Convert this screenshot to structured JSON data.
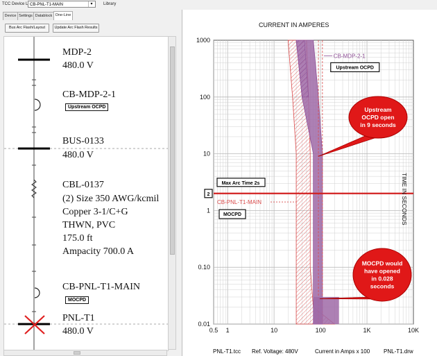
{
  "toolbar": {
    "device_list_label": "TCC Device List",
    "device_selected": "CB-PNL-T1-MAIN",
    "library_label": "Library"
  },
  "tabs": [
    "Device",
    "Settings",
    "Datablock",
    "One-Line"
  ],
  "buttons": {
    "bus_arc_flash": "Bus Arc Flash/Layout",
    "update_arc_flash": "Update Arc Flash Results"
  },
  "oneline": {
    "mdp_name": "MDP-2",
    "mdp_voltage": "480.0 V",
    "cb_mdp_name": "CB-MDP-2-1",
    "cb_mdp_tag": "Upstream OCPD",
    "bus_name": "BUS-0133",
    "bus_voltage": "480.0 V",
    "cable_name": "CBL-0137",
    "cable_lines": [
      "(2) Size 350 AWG/kcmil",
      "Copper 3-1/C+G",
      "THWN, PVC",
      "175.0 ft",
      "Ampacity 700.0 A"
    ],
    "cb_pnl_name": "CB-PNL-T1-MAIN",
    "cb_pnl_tag": "MOCPD",
    "pnl_name": "PNL-T1",
    "pnl_voltage": "480.0 V"
  },
  "tcc": {
    "title": "CURRENT IN AMPERES",
    "ylabel": "TIME IN SECONDS",
    "footer_file": "PNL-T1.tcc",
    "footer_ref": "Ref. Voltage: 480V",
    "footer_current": "Current in Amps x 100",
    "footer_drw": "PNL-T1.drw",
    "upstream_label": "CB-MDP-2-1",
    "upstream_tag": "Upstream OCPD",
    "mocpd_label": "CB-PNL-T1-MAIN",
    "mocpd_tag": "MOCPD",
    "arc_time_label": "Max Arc Time 2s",
    "arc_marker": "2",
    "callout_upstream": [
      "Upstream",
      "OCPD open",
      "in 9 seconds"
    ],
    "callout_mocpd": [
      "MOCPD would",
      "have opened",
      "in 0.028",
      "seconds"
    ],
    "colors": {
      "upstream": "#8e4f96",
      "mocpd": "#d94a4a",
      "arc_line": "#d22020",
      "callout_fill": "#e01818",
      "grid": "#d0d0d0"
    }
  },
  "chart_data": {
    "type": "line",
    "x_scale": "log",
    "y_scale": "log",
    "xlim": [
      0.5,
      10000
    ],
    "ylim": [
      0.01,
      1000
    ],
    "x_tick_labels": [
      "0.5",
      "1",
      "10",
      "100",
      "1K",
      "10K"
    ],
    "y_tick_labels": [
      "0.01",
      "0.10",
      "1",
      "10",
      "100",
      "1000"
    ],
    "series": [
      {
        "name": "CB-MDP-2-1",
        "left_band": [
          [
            30,
            1000
          ],
          [
            40,
            100
          ],
          [
            70,
            10
          ],
          [
            70,
            0.01
          ]
        ],
        "right_band": [
          [
            70,
            1000
          ],
          [
            90,
            100
          ],
          [
            110,
            10
          ],
          [
            110,
            0.01
          ]
        ]
      },
      {
        "name": "CB-PNL-T1-MAIN",
        "left_band": [
          [
            20,
            1000
          ],
          [
            25,
            100
          ],
          [
            30,
            10
          ],
          [
            30,
            0.1
          ],
          [
            30,
            0.01
          ]
        ],
        "right_band": [
          [
            50,
            1000
          ],
          [
            55,
            100
          ],
          [
            60,
            10
          ],
          [
            60,
            0.1
          ],
          [
            70,
            0.02
          ],
          [
            200,
            0.01
          ]
        ]
      }
    ],
    "arc_time_seconds": 2,
    "upstream_clearing_seconds": 9,
    "mocpd_clearing_seconds": 0.028
  }
}
